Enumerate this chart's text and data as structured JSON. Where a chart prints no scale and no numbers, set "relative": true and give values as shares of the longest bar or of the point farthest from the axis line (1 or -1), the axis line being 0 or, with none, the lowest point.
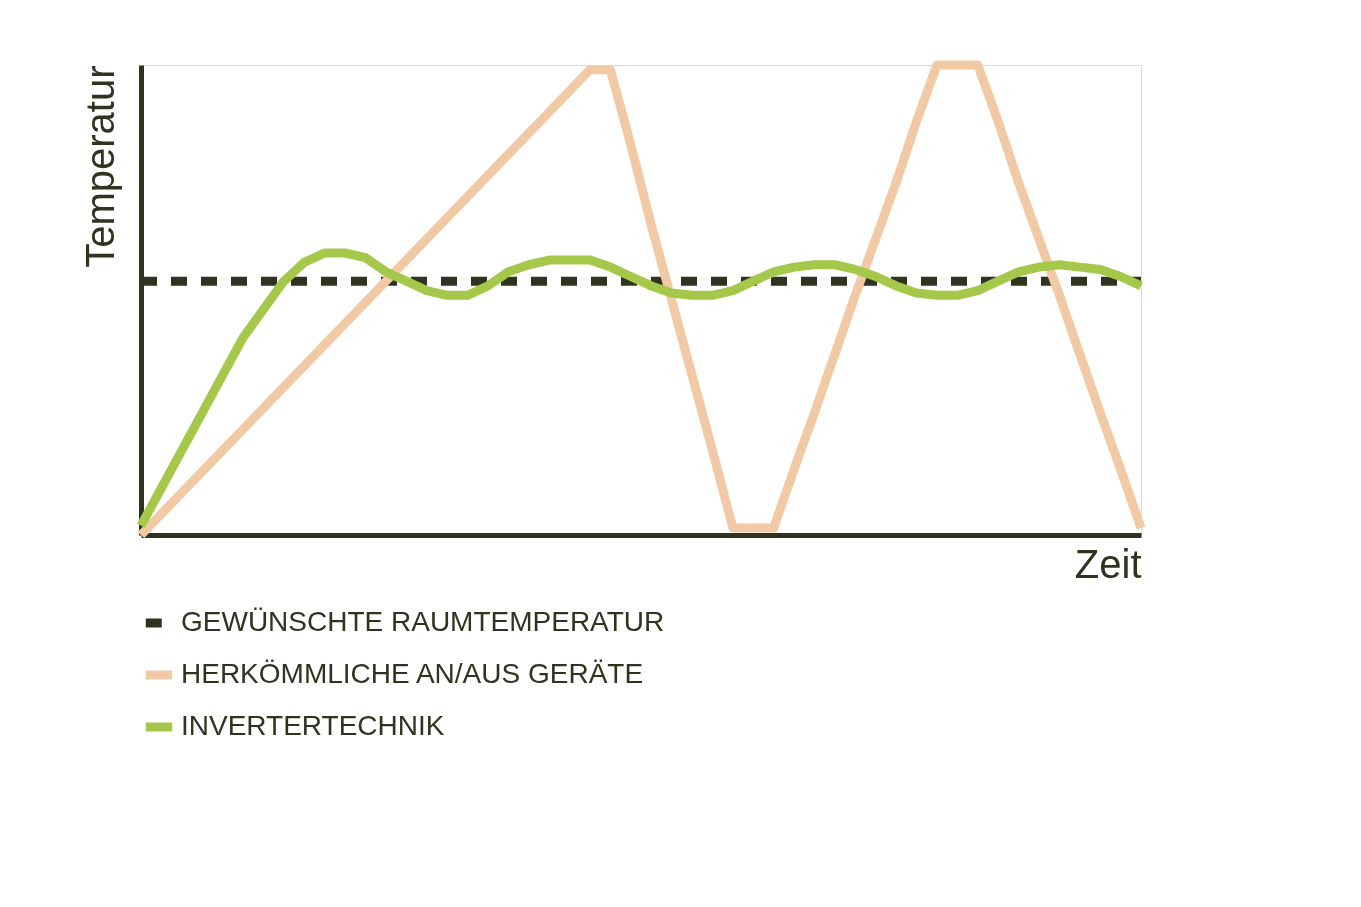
{
  "chart_data": {
    "type": "line",
    "relative": true,
    "xlabel": "Zeit",
    "ylabel": "Temperatur",
    "tick_labels": false,
    "grid": false,
    "legend": "bottom",
    "marker": "none",
    "categories": [
      null,
      null,
      null,
      null,
      null,
      null,
      null,
      null,
      null,
      null,
      null,
      null,
      null,
      null,
      null,
      null,
      null,
      null,
      null,
      null,
      null,
      null,
      null,
      null,
      null,
      null,
      null,
      null,
      null,
      null,
      null,
      null,
      null,
      null,
      null,
      null,
      null,
      null,
      null,
      null,
      null,
      null,
      null,
      null,
      null,
      null,
      null,
      null,
      null,
      null
    ],
    "series": [
      {
        "name": "GEWÜNSCHTE RAUMTEMPERATUR",
        "color": "#2f3320",
        "line_style": "dashed",
        "values": [
          0.54,
          0.54,
          0.54,
          0.54,
          0.54,
          0.54,
          0.54,
          0.54,
          0.54,
          0.54,
          0.54,
          0.54,
          0.54,
          0.54,
          0.54,
          0.54,
          0.54,
          0.54,
          0.54,
          0.54,
          0.54,
          0.54,
          0.54,
          0.54,
          0.54,
          0.54,
          0.54,
          0.54,
          0.54,
          0.54,
          0.54,
          0.54,
          0.54,
          0.54,
          0.54,
          0.54,
          0.54,
          0.54,
          0.54,
          0.54,
          0.54,
          0.54,
          0.54,
          0.54,
          0.54,
          0.54,
          0.54,
          0.54,
          0.54,
          0.54
        ]
      },
      {
        "name": "HERKÖMMLICHE AN/AUS GERÄTE",
        "color": "#f2c9a5",
        "line_style": "solid",
        "values": [
          0,
          0.045,
          0.09,
          0.135,
          0.18,
          0.225,
          0.27,
          0.315,
          0.36,
          0.405,
          0.45,
          0.495,
          0.54,
          0.585,
          0.63,
          0.675,
          0.72,
          0.765,
          0.81,
          0.855,
          0.9,
          0.945,
          0.99,
          0.99,
          0.83,
          0.66,
          0.5,
          0.34,
          0.18,
          0.015,
          0.015,
          0.015,
          0.14,
          0.26,
          0.385,
          0.51,
          0.63,
          0.75,
          0.88,
          1,
          1,
          1,
          0.88,
          0.75,
          0.63,
          0.51,
          0.385,
          0.26,
          0.14,
          0.015
        ]
      },
      {
        "name": "INVERTERTECHNIK",
        "color": "#a5c84a",
        "line_style": "solid",
        "values": [
          0.02,
          0.1,
          0.18,
          0.26,
          0.34,
          0.42,
          0.48,
          0.54,
          0.58,
          0.6,
          0.6,
          0.59,
          0.56,
          0.54,
          0.52,
          0.51,
          0.51,
          0.53,
          0.56,
          0.575,
          0.585,
          0.585,
          0.585,
          0.57,
          0.55,
          0.53,
          0.515,
          0.51,
          0.51,
          0.52,
          0.54,
          0.56,
          0.57,
          0.575,
          0.575,
          0.565,
          0.55,
          0.53,
          0.515,
          0.51,
          0.51,
          0.52,
          0.54,
          0.56,
          0.57,
          0.575,
          0.57,
          0.565,
          0.55,
          0.53
        ]
      }
    ]
  }
}
